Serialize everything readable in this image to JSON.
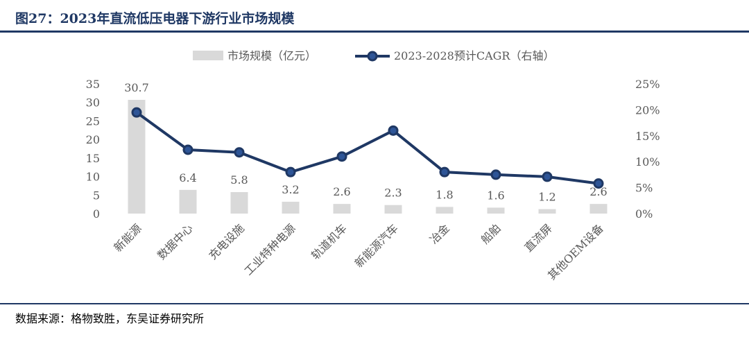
{
  "header": {
    "title": "图27：2023年直流低压电器下游行业市场规模"
  },
  "footer": {
    "source": "数据来源：格物致胜，东吴证券研究所"
  },
  "colors": {
    "bar": "#d9d9d9",
    "line": "#1f3864",
    "marker_fill": "#1f3864",
    "marker_inner": "#2e5597",
    "rule": "#1f3864"
  },
  "chart_data": {
    "type": "bar+line",
    "categories": [
      "新能源",
      "数据中心",
      "充电设施",
      "工业特种电源",
      "轨道机车",
      "新能源汽车",
      "冶金",
      "船舶",
      "直流屏",
      "其他OEM设备"
    ],
    "series": [
      {
        "name": "市场规模（亿元）",
        "type": "bar",
        "axis": "left",
        "values": [
          30.7,
          6.4,
          5.8,
          3.2,
          2.6,
          2.3,
          1.8,
          1.6,
          1.2,
          2.6
        ],
        "labels": [
          "30.7",
          "6.4",
          "5.8",
          "3.2",
          "2.6",
          "2.3",
          "1.8",
          "1.6",
          "1.2",
          "2.6"
        ]
      },
      {
        "name": "2023-2028预计CAGR（右轴）",
        "type": "line",
        "axis": "right",
        "values": [
          19.5,
          12.3,
          11.8,
          8.0,
          11.0,
          16.0,
          8.0,
          7.5,
          7.1,
          5.8
        ]
      }
    ],
    "y_left": {
      "min": 0,
      "max": 35,
      "ticks": [
        "0",
        "5",
        "10",
        "15",
        "20",
        "25",
        "30",
        "35"
      ]
    },
    "y_right": {
      "min": 0,
      "max": 25,
      "ticks": [
        "0%",
        "5%",
        "10%",
        "15%",
        "20%",
        "25%"
      ]
    },
    "legend_position": "top-center",
    "grid": false
  }
}
